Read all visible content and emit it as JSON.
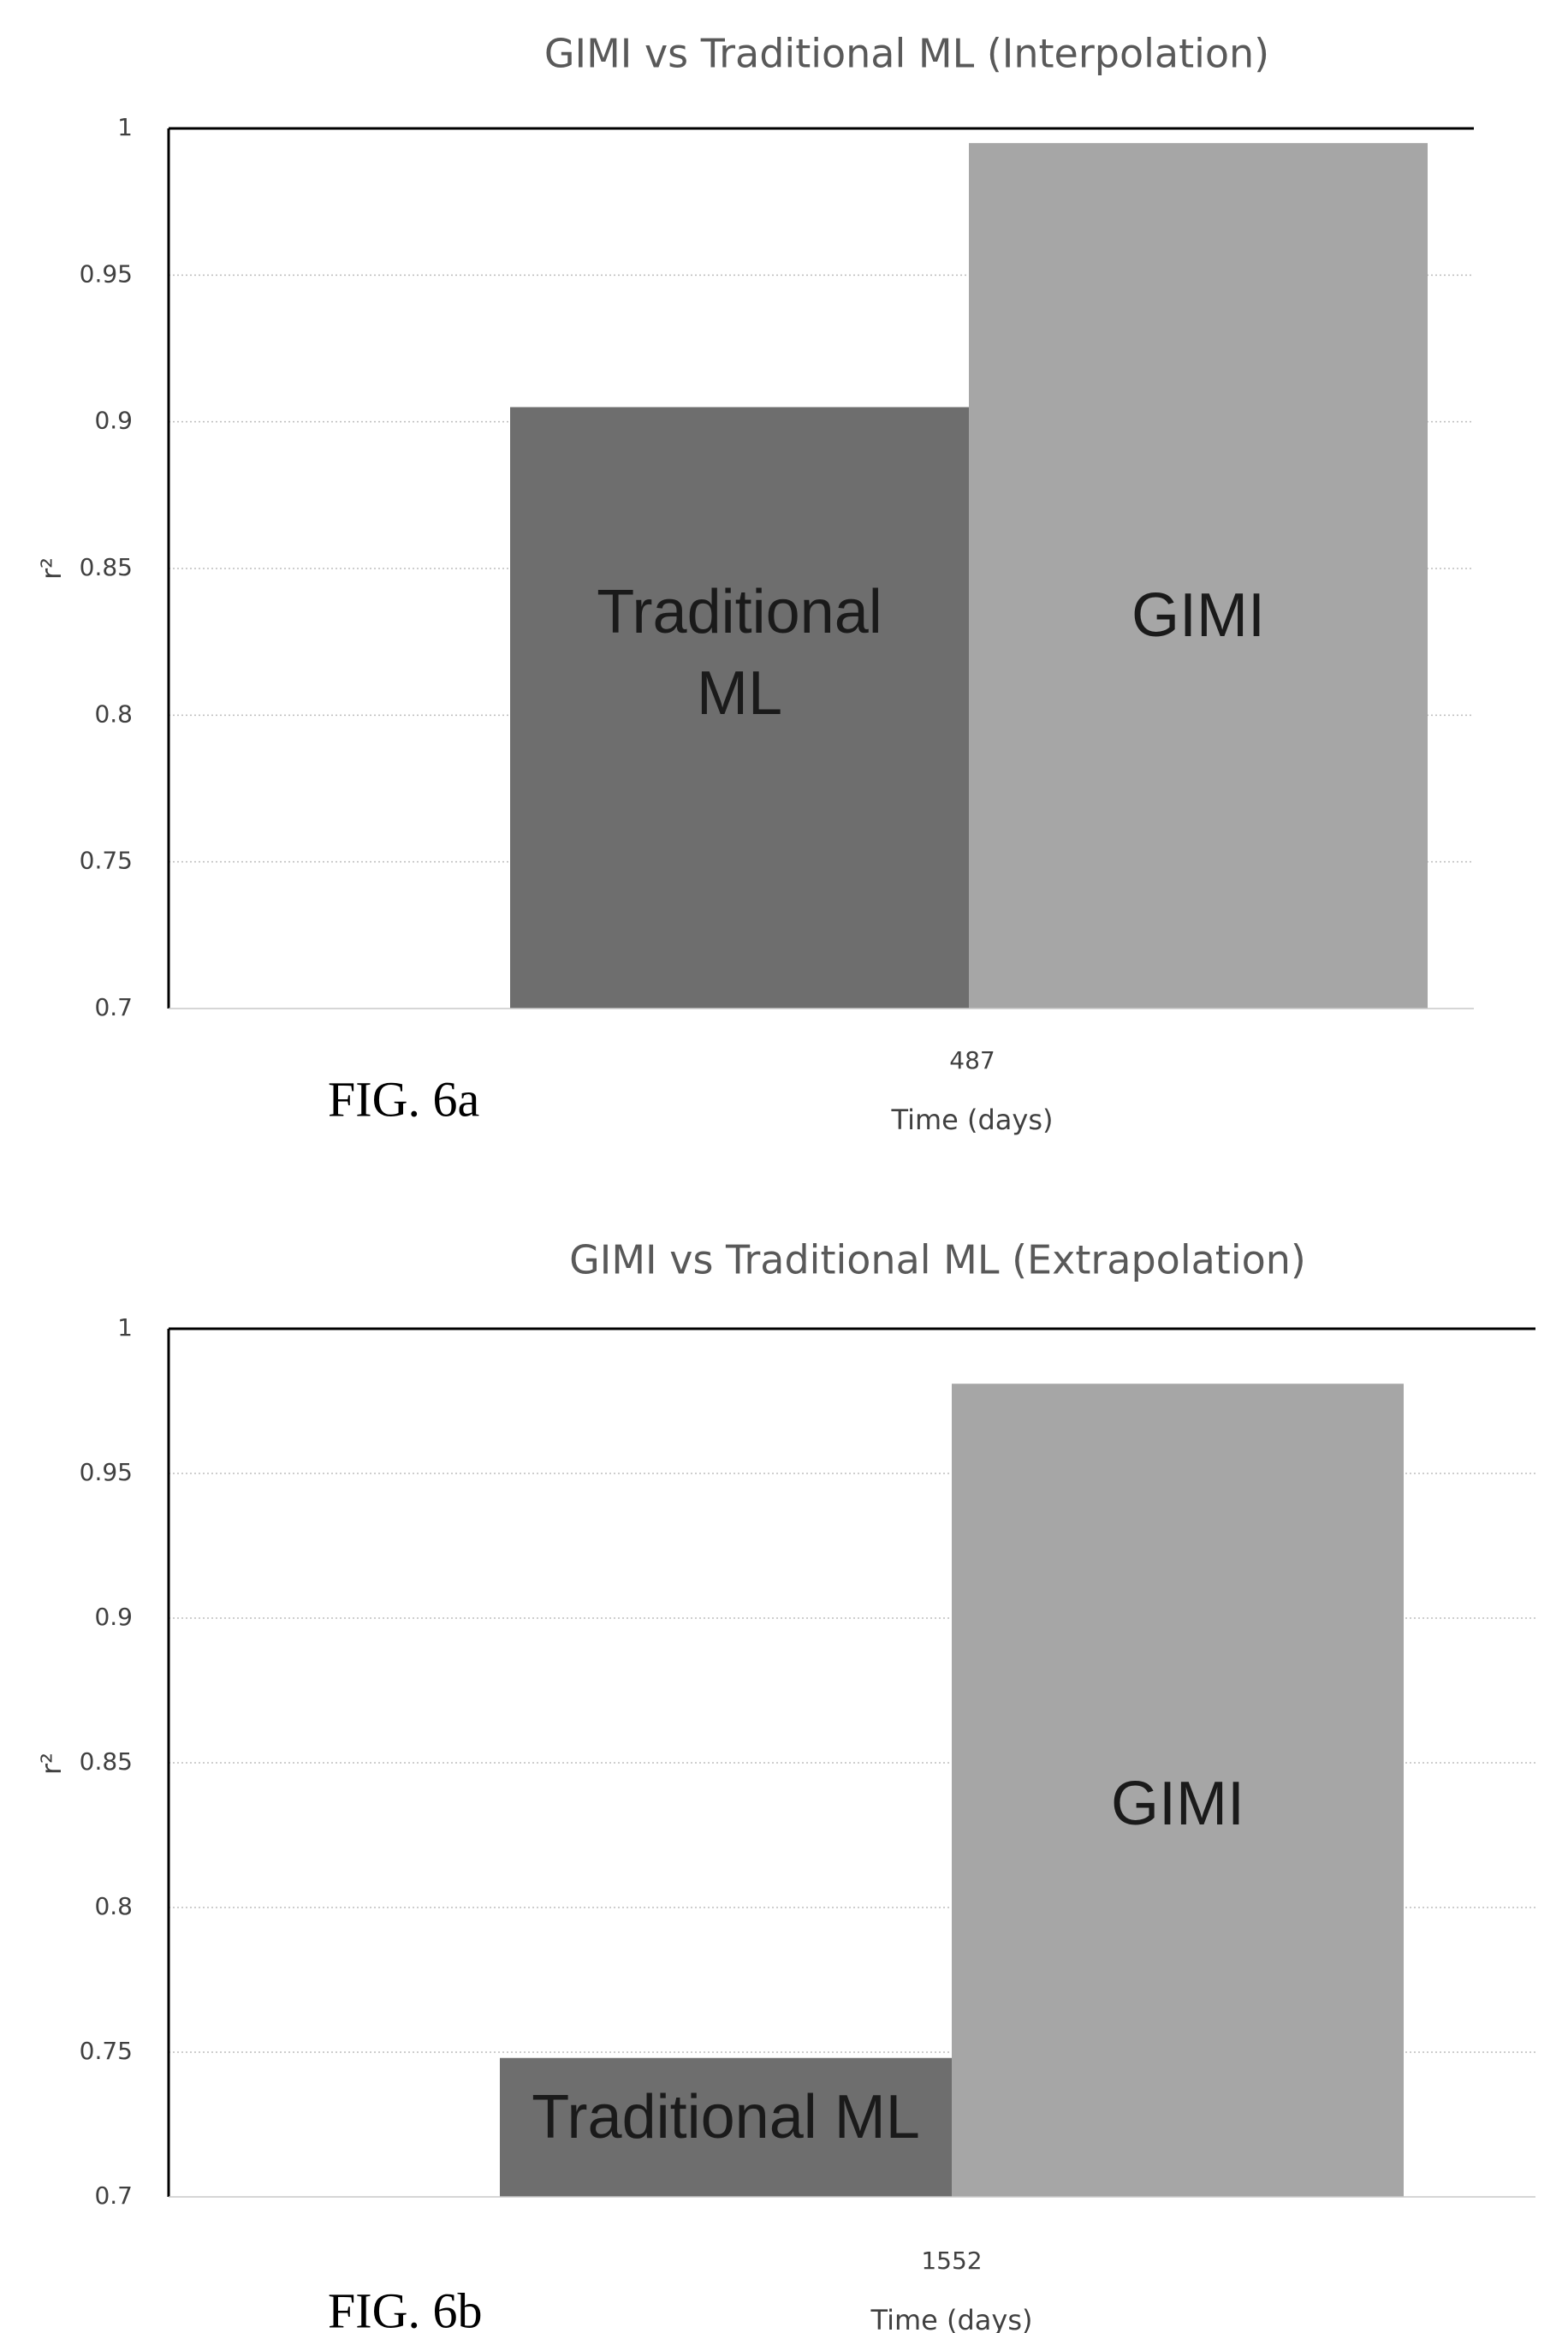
{
  "chart_data": [
    {
      "type": "bar",
      "title": "GIMI vs Traditional ML (Interpolation)",
      "caption": "FIG. 6a",
      "xlabel": "Time (days)",
      "ylabel": "r²",
      "x_tick": "487",
      "ylim": [
        0.7,
        1.0
      ],
      "yticks": [
        "0.7",
        "0.75",
        "0.8",
        "0.85",
        "0.9",
        "0.95",
        "1"
      ],
      "grid": true,
      "bars": [
        {
          "label": "Traditional ML",
          "label_lines": [
            "Traditional",
            "ML"
          ],
          "value": 0.905,
          "color": "#6e6e6e"
        },
        {
          "label": "GIMI",
          "label_lines": [
            "GIMI"
          ],
          "value": 0.995,
          "color": "#a6a6a6"
        }
      ]
    },
    {
      "type": "bar",
      "title": "GIMI vs Traditional ML (Extrapolation)",
      "caption": "FIG. 6b",
      "xlabel": "Time (days)",
      "ylabel": "r²",
      "x_tick": "1552",
      "ylim": [
        0.7,
        1.0
      ],
      "yticks": [
        "0.7",
        "0.75",
        "0.8",
        "0.85",
        "0.9",
        "0.95",
        "1"
      ],
      "grid": true,
      "bars": [
        {
          "label": "Traditional ML",
          "label_lines": [
            "Traditional ML"
          ],
          "value": 0.748,
          "color": "#6e6e6e"
        },
        {
          "label": "GIMI",
          "label_lines": [
            "GIMI"
          ],
          "value": 0.981,
          "color": "#a6a6a6"
        }
      ]
    }
  ]
}
